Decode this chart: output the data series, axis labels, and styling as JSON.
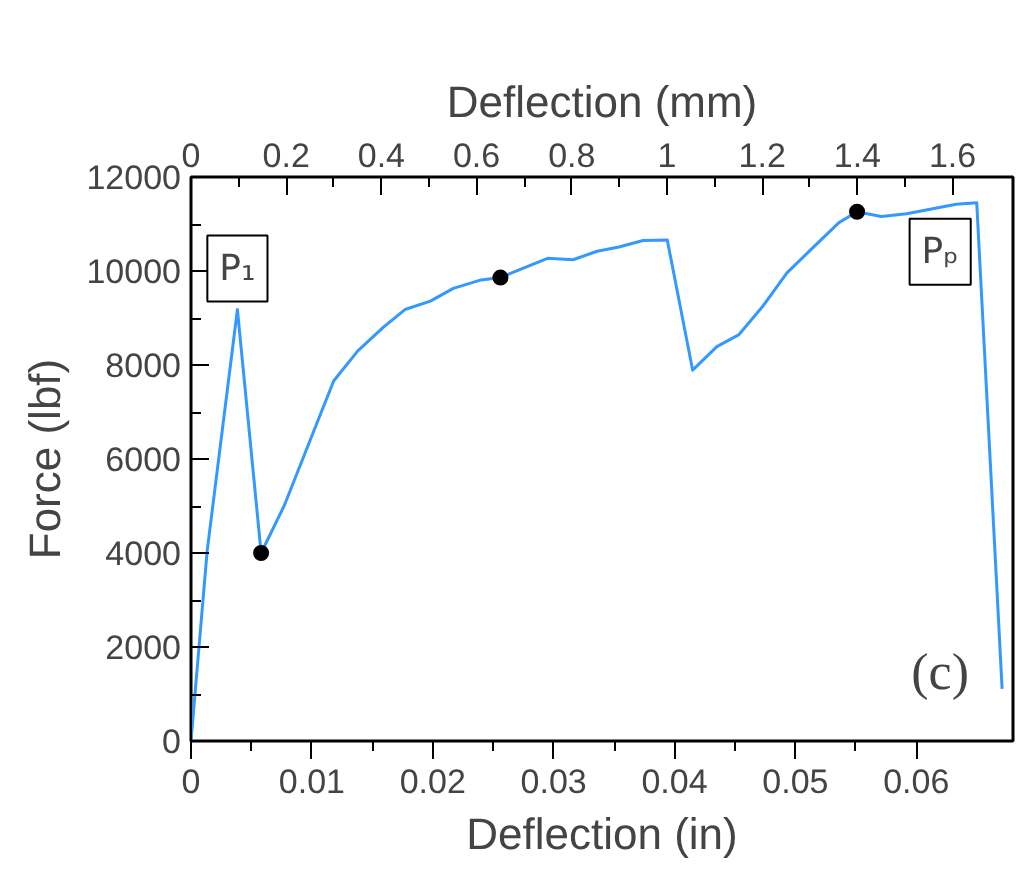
{
  "chart_data": {
    "type": "line",
    "xlabel": "Deflection (in)",
    "ylabel": "Force (lbf)",
    "x2label": "Deflection (mm)",
    "xlim": [
      0,
      0.068
    ],
    "xticks": [
      0,
      0.01,
      0.02,
      0.03,
      0.04,
      0.05,
      0.06
    ],
    "x2lim": [
      0,
      1.727
    ],
    "x2ticks": [
      0,
      0.2,
      0.4,
      0.6,
      0.8,
      1,
      1.2,
      1.4,
      1.6
    ],
    "ylim": [
      0,
      12000
    ],
    "yticks": [
      0,
      2000,
      4000,
      6000,
      8000,
      10000,
      12000
    ],
    "grid": false,
    "marker": "none",
    "line_style": "solid",
    "series": [
      {
        "color": "#3399ff",
        "x": [
          0,
          0.00134,
          0.00384,
          0.0058,
          0.0077,
          0.0118,
          0.0138,
          0.0159,
          0.0177,
          0.0198,
          0.0217,
          0.024,
          0.0256,
          0.0275,
          0.0295,
          0.0316,
          0.0336,
          0.0354,
          0.0374,
          0.0394,
          0.0415,
          0.0435,
          0.0453,
          0.0473,
          0.0493,
          0.0513,
          0.0536,
          0.0551,
          0.0571,
          0.0592,
          0.0633,
          0.065,
          0.0671
        ],
        "values": [
          0,
          4050,
          9180,
          4000,
          5000,
          7660,
          8300,
          8800,
          9180,
          9360,
          9630,
          9810,
          9860,
          10060,
          10270,
          10240,
          10420,
          10510,
          10650,
          10660,
          7890,
          8390,
          8640,
          9250,
          9960,
          10460,
          11030,
          11260,
          11160,
          11220,
          11420,
          11450,
          1110
        ]
      },
      {
        "type": "scatter",
        "marker": "circle",
        "color": "#000000",
        "x": [
          0.0058,
          0.0256,
          0.0551
        ],
        "values": [
          4000,
          9860,
          11260
        ]
      }
    ],
    "annotations": [
      {
        "text": "P₁",
        "x": 0.00384,
        "y": 9180
      },
      {
        "text": "Pₚ",
        "x": 0.065,
        "y": 11450
      },
      "(c)"
    ]
  }
}
